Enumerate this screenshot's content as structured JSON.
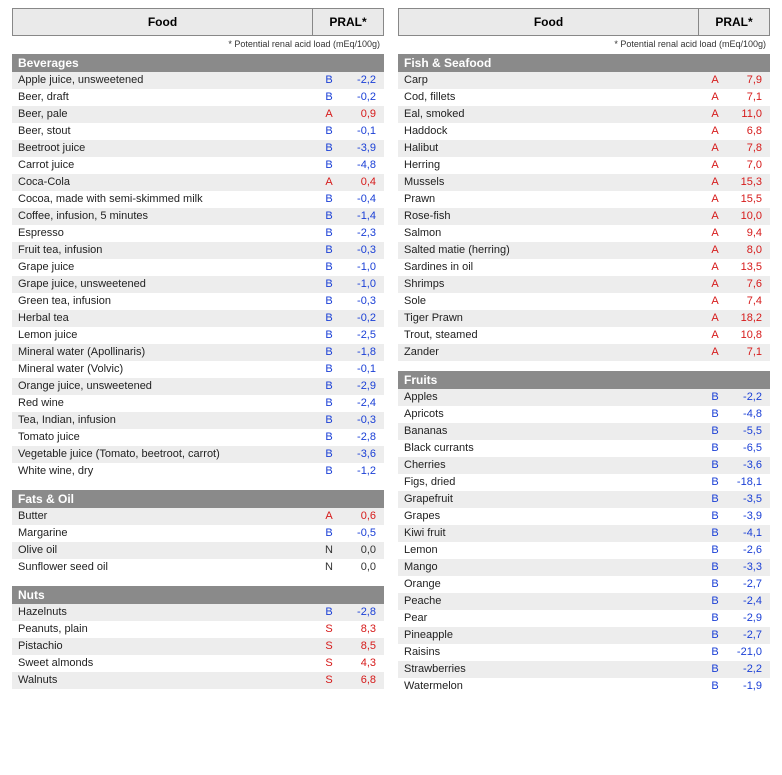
{
  "header": {
    "food": "Food",
    "pral": "PRAL*"
  },
  "note": "* Potential renal acid load (mEq/100g)",
  "colors": {
    "B": "#1a3fd6",
    "A": "#d61a1a",
    "S": "#d61a1a",
    "N": "#333333",
    "category_bg": "#8a8a8a",
    "row_alt_bg": "#ededed",
    "header_bg": "#eaeaea"
  },
  "left": [
    {
      "category": "Beverages",
      "rows": [
        {
          "food": "Apple juice, unsweetened",
          "code": "B",
          "val": "-2,2"
        },
        {
          "food": "Beer, draft",
          "code": "B",
          "val": "-0,2"
        },
        {
          "food": "Beer, pale",
          "code": "A",
          "val": "0,9"
        },
        {
          "food": "Beer, stout",
          "code": "B",
          "val": "-0,1"
        },
        {
          "food": "Beetroot juice",
          "code": "B",
          "val": "-3,9"
        },
        {
          "food": "Carrot juice",
          "code": "B",
          "val": "-4,8"
        },
        {
          "food": "Coca-Cola",
          "code": "A",
          "val": "0,4"
        },
        {
          "food": "Cocoa, made with semi-skimmed milk",
          "code": "B",
          "val": "-0,4"
        },
        {
          "food": "Coffee, infusion, 5 minutes",
          "code": "B",
          "val": "-1,4"
        },
        {
          "food": "Espresso",
          "code": "B",
          "val": "-2,3"
        },
        {
          "food": "Fruit tea, infusion",
          "code": "B",
          "val": "-0,3"
        },
        {
          "food": "Grape juice",
          "code": "B",
          "val": "-1,0"
        },
        {
          "food": "Grape juice, unsweetened",
          "code": "B",
          "val": "-1,0"
        },
        {
          "food": "Green tea, infusion",
          "code": "B",
          "val": "-0,3"
        },
        {
          "food": "Herbal tea",
          "code": "B",
          "val": "-0,2"
        },
        {
          "food": "Lemon juice",
          "code": "B",
          "val": "-2,5"
        },
        {
          "food": "Mineral water (Apollinaris)",
          "code": "B",
          "val": "-1,8"
        },
        {
          "food": "Mineral water (Volvic)",
          "code": "B",
          "val": "-0,1"
        },
        {
          "food": "Orange juice, unsweetened",
          "code": "B",
          "val": "-2,9"
        },
        {
          "food": "Red wine",
          "code": "B",
          "val": "-2,4"
        },
        {
          "food": "Tea, Indian, infusion",
          "code": "B",
          "val": "-0,3"
        },
        {
          "food": "Tomato juice",
          "code": "B",
          "val": "-2,8"
        },
        {
          "food": "Vegetable juice (Tomato, beetroot, carrot)",
          "code": "B",
          "val": "-3,6"
        },
        {
          "food": "White wine, dry",
          "code": "B",
          "val": "-1,2"
        }
      ]
    },
    {
      "category": "Fats & Oil",
      "rows": [
        {
          "food": "Butter",
          "code": "A",
          "val": "0,6"
        },
        {
          "food": "Margarine",
          "code": "B",
          "val": "-0,5"
        },
        {
          "food": "Olive oil",
          "code": "N",
          "val": "0,0"
        },
        {
          "food": "Sunflower seed oil",
          "code": "N",
          "val": "0,0"
        }
      ]
    },
    {
      "category": "Nuts",
      "rows": [
        {
          "food": "Hazelnuts",
          "code": "B",
          "val": "-2,8"
        },
        {
          "food": "Peanuts, plain",
          "code": "S",
          "val": "8,3"
        },
        {
          "food": "Pistachio",
          "code": "S",
          "val": "8,5"
        },
        {
          "food": "Sweet almonds",
          "code": "S",
          "val": "4,3"
        },
        {
          "food": "Walnuts",
          "code": "S",
          "val": "6,8"
        }
      ]
    }
  ],
  "right": [
    {
      "category": "Fish & Seafood",
      "rows": [
        {
          "food": "Carp",
          "code": "A",
          "val": "7,9"
        },
        {
          "food": "Cod, fillets",
          "code": "A",
          "val": "7,1"
        },
        {
          "food": "Eal, smoked",
          "code": "A",
          "val": "11,0"
        },
        {
          "food": "Haddock",
          "code": "A",
          "val": "6,8"
        },
        {
          "food": "Halibut",
          "code": "A",
          "val": "7,8"
        },
        {
          "food": "Herring",
          "code": "A",
          "val": "7,0"
        },
        {
          "food": "Mussels",
          "code": "A",
          "val": "15,3"
        },
        {
          "food": "Prawn",
          "code": "A",
          "val": "15,5"
        },
        {
          "food": "Rose-fish",
          "code": "A",
          "val": "10,0"
        },
        {
          "food": "Salmon",
          "code": "A",
          "val": "9,4"
        },
        {
          "food": "Salted matie (herring)",
          "code": "A",
          "val": "8,0"
        },
        {
          "food": "Sardines in oil",
          "code": "A",
          "val": "13,5"
        },
        {
          "food": "Shrimps",
          "code": "A",
          "val": "7,6"
        },
        {
          "food": "Sole",
          "code": "A",
          "val": "7,4"
        },
        {
          "food": "Tiger Prawn",
          "code": "A",
          "val": "18,2"
        },
        {
          "food": "Trout, steamed",
          "code": "A",
          "val": "10,8"
        },
        {
          "food": "Zander",
          "code": "A",
          "val": "7,1"
        }
      ]
    },
    {
      "category": "Fruits",
      "rows": [
        {
          "food": "Apples",
          "code": "B",
          "val": "-2,2"
        },
        {
          "food": "Apricots",
          "code": "B",
          "val": "-4,8"
        },
        {
          "food": "Bananas",
          "code": "B",
          "val": "-5,5"
        },
        {
          "food": "Black currants",
          "code": "B",
          "val": "-6,5"
        },
        {
          "food": "Cherries",
          "code": "B",
          "val": "-3,6"
        },
        {
          "food": "Figs, dried",
          "code": "B",
          "val": "-18,1"
        },
        {
          "food": "Grapefruit",
          "code": "B",
          "val": "-3,5"
        },
        {
          "food": "Grapes",
          "code": "B",
          "val": "-3,9"
        },
        {
          "food": "Kiwi fruit",
          "code": "B",
          "val": "-4,1"
        },
        {
          "food": "Lemon",
          "code": "B",
          "val": "-2,6"
        },
        {
          "food": "Mango",
          "code": "B",
          "val": "-3,3"
        },
        {
          "food": "Orange",
          "code": "B",
          "val": "-2,7"
        },
        {
          "food": "Peache",
          "code": "B",
          "val": "-2,4"
        },
        {
          "food": "Pear",
          "code": "B",
          "val": "-2,9"
        },
        {
          "food": "Pineapple",
          "code": "B",
          "val": "-2,7"
        },
        {
          "food": "Raisins",
          "code": "B",
          "val": "-21,0"
        },
        {
          "food": "Strawberries",
          "code": "B",
          "val": "-2,2"
        },
        {
          "food": "Watermelon",
          "code": "B",
          "val": "-1,9"
        }
      ]
    }
  ]
}
